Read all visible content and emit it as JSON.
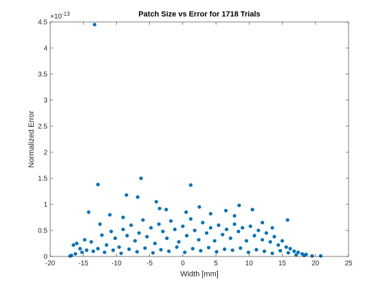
{
  "chart_data": {
    "type": "scatter",
    "title": "Patch Size vs Error for 1718 Trials",
    "xlabel": "Width [mm]",
    "ylabel": "Normalized Error",
    "y_exponent_label": "×10",
    "y_exponent_power": "-13",
    "xlim": [
      -20,
      25
    ],
    "ylim": [
      0,
      4.5
    ],
    "x_ticks": [
      "-20",
      "-15",
      "-10",
      "-5",
      "0",
      "5",
      "10",
      "15",
      "20",
      "25"
    ],
    "y_ticks": [
      "0",
      "0.5",
      "1",
      "1.5",
      "2",
      "2.5",
      "3",
      "3.5",
      "4",
      "4.5"
    ],
    "grid": false,
    "marker_color": "#0072BD",
    "points": [
      [
        -13.3,
        4.45
      ],
      [
        -12.8,
        1.38
      ],
      [
        -6.3,
        1.5
      ],
      [
        1.2,
        1.37
      ],
      [
        -8.5,
        1.18
      ],
      [
        -6.8,
        1.14
      ],
      [
        -4.0,
        1.05
      ],
      [
        -14.2,
        0.85
      ],
      [
        -2.5,
        0.9
      ],
      [
        2.5,
        0.95
      ],
      [
        8.5,
        0.98
      ],
      [
        10.5,
        0.9
      ],
      [
        15.8,
        0.7
      ],
      [
        -11.0,
        0.8
      ],
      [
        -3.5,
        0.92
      ],
      [
        6.5,
        0.88
      ],
      [
        4.2,
        0.82
      ],
      [
        12.0,
        0.65
      ],
      [
        -9.0,
        0.75
      ],
      [
        0.5,
        0.85
      ],
      [
        7.8,
        0.78
      ],
      [
        13.5,
        0.55
      ],
      [
        -12.5,
        0.62
      ],
      [
        -16.5,
        0.22
      ],
      [
        -16.0,
        0.25
      ],
      [
        -15.5,
        0.15
      ],
      [
        -14.8,
        0.32
      ],
      [
        -13.8,
        0.28
      ],
      [
        -12.2,
        0.41
      ],
      [
        -11.5,
        0.22
      ],
      [
        -10.8,
        0.48
      ],
      [
        -10.2,
        0.35
      ],
      [
        -9.6,
        0.18
      ],
      [
        -9.0,
        0.52
      ],
      [
        -8.4,
        0.4
      ],
      [
        -7.8,
        0.6
      ],
      [
        -7.2,
        0.3
      ],
      [
        -6.6,
        0.45
      ],
      [
        -6.0,
        0.7
      ],
      [
        -5.4,
        0.38
      ],
      [
        -4.8,
        0.55
      ],
      [
        -4.2,
        0.25
      ],
      [
        -3.6,
        0.62
      ],
      [
        -3.0,
        0.48
      ],
      [
        -2.4,
        0.35
      ],
      [
        -1.8,
        0.68
      ],
      [
        -1.2,
        0.52
      ],
      [
        -0.6,
        0.28
      ],
      [
        0.0,
        0.58
      ],
      [
        0.6,
        0.4
      ],
      [
        1.2,
        0.72
      ],
      [
        1.8,
        0.5
      ],
      [
        2.4,
        0.32
      ],
      [
        3.0,
        0.65
      ],
      [
        3.6,
        0.45
      ],
      [
        4.2,
        0.55
      ],
      [
        4.8,
        0.3
      ],
      [
        5.4,
        0.6
      ],
      [
        6.0,
        0.42
      ],
      [
        6.6,
        0.52
      ],
      [
        7.2,
        0.35
      ],
      [
        7.8,
        0.62
      ],
      [
        8.4,
        0.48
      ],
      [
        9.0,
        0.55
      ],
      [
        9.6,
        0.3
      ],
      [
        10.2,
        0.58
      ],
      [
        10.8,
        0.4
      ],
      [
        11.4,
        0.5
      ],
      [
        12.0,
        0.32
      ],
      [
        12.6,
        0.45
      ],
      [
        13.2,
        0.28
      ],
      [
        13.8,
        0.38
      ],
      [
        14.4,
        0.22
      ],
      [
        15.0,
        0.3
      ],
      [
        15.6,
        0.18
      ],
      [
        16.2,
        0.15
      ],
      [
        16.8,
        0.1
      ],
      [
        17.4,
        0.08
      ],
      [
        18.0,
        0.05
      ],
      [
        18.6,
        0.04
      ],
      [
        -16.8,
        0.02
      ],
      [
        -16.2,
        0.05
      ],
      [
        -15.2,
        0.08
      ],
      [
        -14.5,
        0.12
      ],
      [
        -13.5,
        0.1
      ],
      [
        -12.8,
        0.15
      ],
      [
        -11.8,
        0.08
      ],
      [
        -10.5,
        0.12
      ],
      [
        -9.3,
        0.06
      ],
      [
        -8.1,
        0.14
      ],
      [
        -6.9,
        0.09
      ],
      [
        -5.7,
        0.16
      ],
      [
        -4.5,
        0.07
      ],
      [
        -3.3,
        0.13
      ],
      [
        -2.1,
        0.1
      ],
      [
        -0.9,
        0.18
      ],
      [
        0.3,
        0.08
      ],
      [
        1.5,
        0.15
      ],
      [
        2.7,
        0.11
      ],
      [
        3.9,
        0.17
      ],
      [
        5.1,
        0.09
      ],
      [
        6.3,
        0.14
      ],
      [
        7.5,
        0.12
      ],
      [
        8.7,
        0.16
      ],
      [
        9.9,
        0.08
      ],
      [
        11.1,
        0.13
      ],
      [
        12.3,
        0.1
      ],
      [
        13.5,
        0.06
      ],
      [
        14.7,
        0.11
      ],
      [
        15.9,
        0.07
      ],
      [
        17.1,
        0.03
      ],
      [
        18.3,
        0.02
      ],
      [
        19.5,
        0.01
      ],
      [
        20.8,
        0.01
      ],
      [
        -17.0,
        0.01
      ]
    ]
  }
}
